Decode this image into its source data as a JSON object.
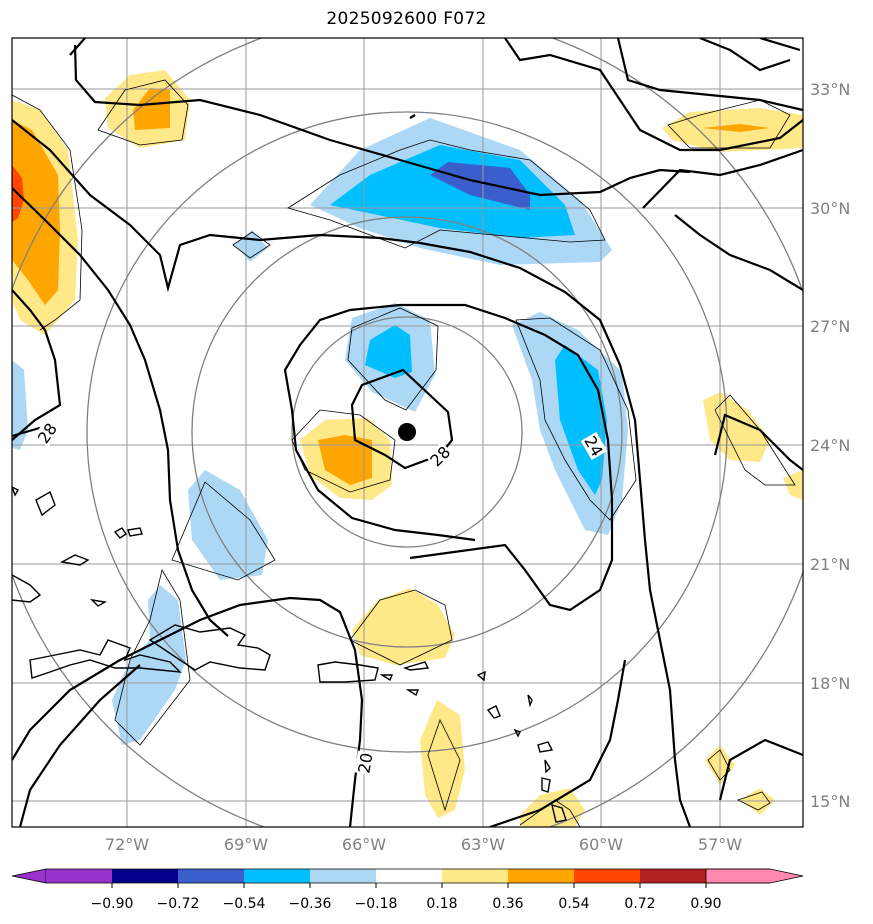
{
  "title": "2025092600 F072",
  "map": {
    "lon_labels": [
      "72°W",
      "69°W",
      "66°W",
      "63°W",
      "60°W",
      "57°W"
    ],
    "lat_labels": [
      "33°N",
      "30°N",
      "27°N",
      "24°N",
      "21°N",
      "18°N",
      "15°N"
    ],
    "contour_labels": [
      "28",
      "28",
      "24",
      "20"
    ],
    "center_marker": "storm-center-dot"
  },
  "colorbar": {
    "ticks": [
      "−0.90",
      "−0.72",
      "−0.54",
      "−0.36",
      "−0.18",
      "0.18",
      "0.36",
      "0.54",
      "0.72",
      "0.90"
    ],
    "colors": [
      "#9932cc",
      "#00008b",
      "#3a5fcd",
      "#00bfff",
      "#add8f5",
      "#ffffff",
      "#ffe888",
      "#ffa500",
      "#ff4500",
      "#b22222",
      "#ff88b0"
    ]
  }
}
